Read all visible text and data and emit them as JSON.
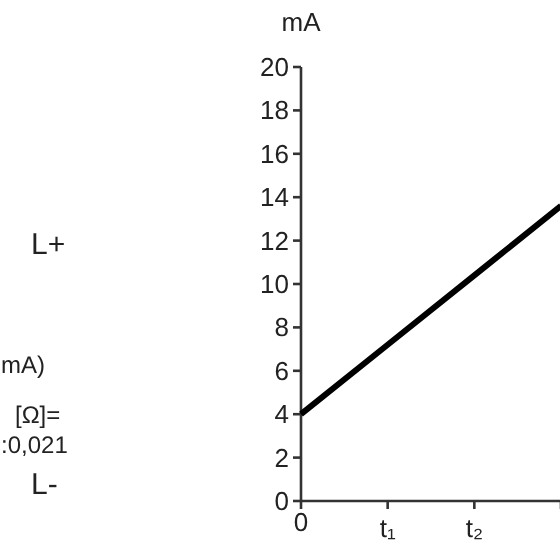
{
  "chart_data": {
    "type": "line",
    "ylabel": "mA",
    "categories": [
      "0",
      "t₁",
      "t₂",
      null
    ],
    "series": [
      {
        "color": "#000000",
        "values": [
          4,
          7.2,
          10.4,
          13.6
        ]
      }
    ],
    "ylim": [
      0,
      20
    ],
    "yticks": [
      0,
      2,
      4,
      6,
      8,
      10,
      12,
      14,
      16,
      18,
      20
    ],
    "grid": false,
    "marker": "none",
    "line_style": "solid",
    "annotations": [
      "L+",
      "mA)",
      "[Ω]=",
      ":0,021",
      "L-"
    ]
  }
}
